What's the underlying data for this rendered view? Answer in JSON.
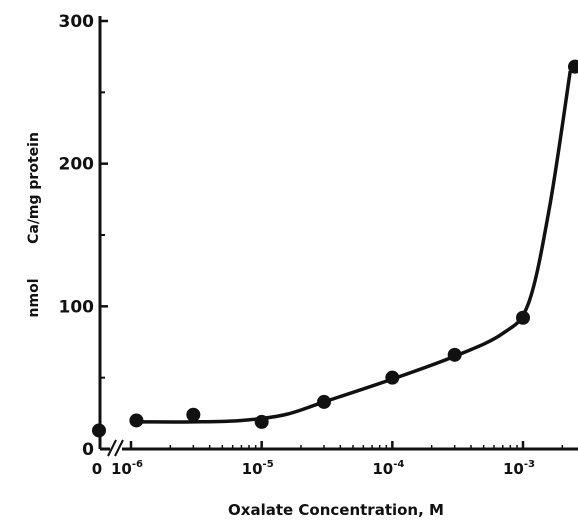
{
  "chart_data": {
    "type": "scatter",
    "xlabel": "Oxalate Concentration, M",
    "ylabel_left": "nmol",
    "ylabel_right": "Ca/mg protein",
    "x_scale": "log",
    "ylim": [
      0,
      300
    ],
    "x_ticks": [
      {
        "value": 0,
        "base": "0",
        "exp": ""
      },
      {
        "value": 1e-06,
        "base": "10",
        "exp": "-6"
      },
      {
        "value": 1e-05,
        "base": "10",
        "exp": "-5"
      },
      {
        "value": 0.0001,
        "base": "10",
        "exp": "-4"
      },
      {
        "value": 0.001,
        "base": "10",
        "exp": "-3"
      }
    ],
    "y_ticks": [
      {
        "value": 0,
        "label": "0"
      },
      {
        "value": 100,
        "label": "100"
      },
      {
        "value": 200,
        "label": "200"
      },
      {
        "value": 300,
        "label": "300"
      }
    ],
    "axis_break": true,
    "series": [
      {
        "points": [
          {
            "x": 0,
            "y": 13
          },
          {
            "x": 1.1e-06,
            "y": 20
          },
          {
            "x": 3e-06,
            "y": 24
          },
          {
            "x": 1e-05,
            "y": 19
          },
          {
            "x": 3e-05,
            "y": 33
          },
          {
            "x": 0.0001,
            "y": 50
          },
          {
            "x": 0.0003,
            "y": 66
          },
          {
            "x": 0.001,
            "y": 92
          },
          {
            "x": 0.0025,
            "y": 268
          }
        ],
        "curve": [
          {
            "x": 1.2e-06,
            "y": 19
          },
          {
            "x": 3e-06,
            "y": 19
          },
          {
            "x": 7e-06,
            "y": 20
          },
          {
            "x": 1.5e-05,
            "y": 24
          },
          {
            "x": 3e-05,
            "y": 33
          },
          {
            "x": 0.0001,
            "y": 49
          },
          {
            "x": 0.0003,
            "y": 65
          },
          {
            "x": 0.0007,
            "y": 81
          },
          {
            "x": 0.0011,
            "y": 102
          },
          {
            "x": 0.0016,
            "y": 170
          },
          {
            "x": 0.0023,
            "y": 265
          }
        ]
      }
    ]
  }
}
